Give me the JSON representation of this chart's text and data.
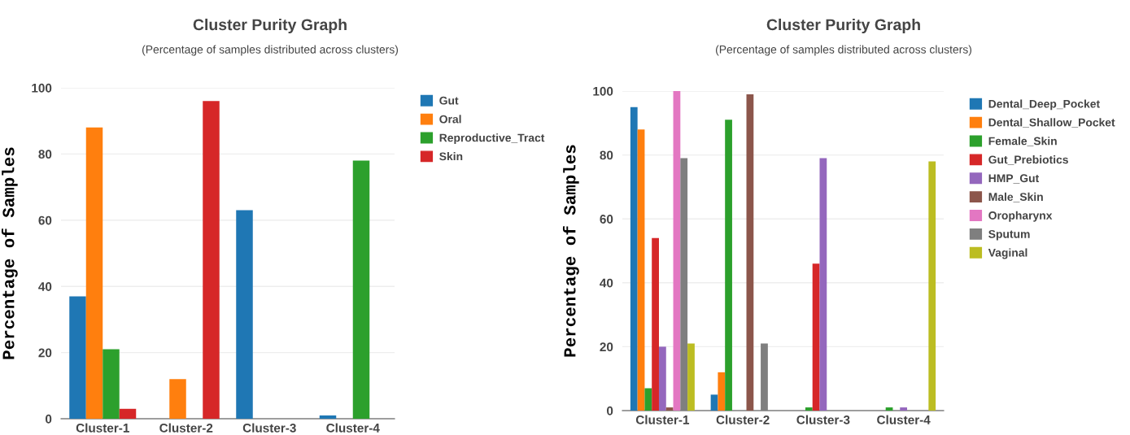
{
  "chart_data": [
    {
      "type": "bar",
      "title": "Cluster Purity Graph",
      "subtitle": "(Percentage of samples distributed across clusters)",
      "ylabel": "Percentage of Samples",
      "categories": [
        "Cluster-1",
        "Cluster-2",
        "Cluster-3",
        "Cluster-4"
      ],
      "series": [
        {
          "name": "Gut",
          "color": "#1f77b4",
          "values": [
            37,
            0,
            63,
            1
          ]
        },
        {
          "name": "Oral",
          "color": "#ff7f0e",
          "values": [
            88,
            12,
            0,
            0
          ]
        },
        {
          "name": "Reproductive_Tract",
          "color": "#2ca02c",
          "values": [
            21,
            0,
            0,
            78
          ]
        },
        {
          "name": "Skin",
          "color": "#d62728",
          "values": [
            3,
            96,
            0,
            0
          ]
        }
      ],
      "ylim": [
        0,
        100
      ],
      "yticks": [
        0,
        20,
        40,
        60,
        80,
        100
      ],
      "grid": "y",
      "legend": "top right"
    },
    {
      "type": "bar",
      "title": "Cluster Purity Graph",
      "subtitle": "(Percentage of samples distributed across clusters)",
      "ylabel": "Percentage of Samples",
      "categories": [
        "Cluster-1",
        "Cluster-2",
        "Cluster-3",
        "Cluster-4"
      ],
      "series": [
        {
          "name": "Dental_Deep_Pocket",
          "color": "#1f77b4",
          "values": [
            95,
            5,
            0,
            0
          ]
        },
        {
          "name": "Dental_Shallow_Pocket",
          "color": "#ff7f0e",
          "values": [
            88,
            12,
            0,
            0
          ]
        },
        {
          "name": "Female_Skin",
          "color": "#2ca02c",
          "values": [
            7,
            91,
            1,
            1
          ]
        },
        {
          "name": "Gut_Prebiotics",
          "color": "#d62728",
          "values": [
            54,
            0,
            46,
            0
          ]
        },
        {
          "name": "HMP_Gut",
          "color": "#9467bd",
          "values": [
            20,
            0,
            79,
            1
          ]
        },
        {
          "name": "Male_Skin",
          "color": "#8c564b",
          "values": [
            1,
            99,
            0,
            0
          ]
        },
        {
          "name": "Oropharynx",
          "color": "#e377c2",
          "values": [
            100,
            0,
            0,
            0
          ]
        },
        {
          "name": "Sputum",
          "color": "#7f7f7f",
          "values": [
            79,
            21,
            0,
            0
          ]
        },
        {
          "name": "Vaginal",
          "color": "#bcbd22",
          "values": [
            21,
            0,
            0,
            78
          ]
        }
      ],
      "ylim": [
        0,
        100
      ],
      "yticks": [
        0,
        20,
        40,
        60,
        80,
        100
      ],
      "grid": "y",
      "legend": "top right"
    }
  ]
}
